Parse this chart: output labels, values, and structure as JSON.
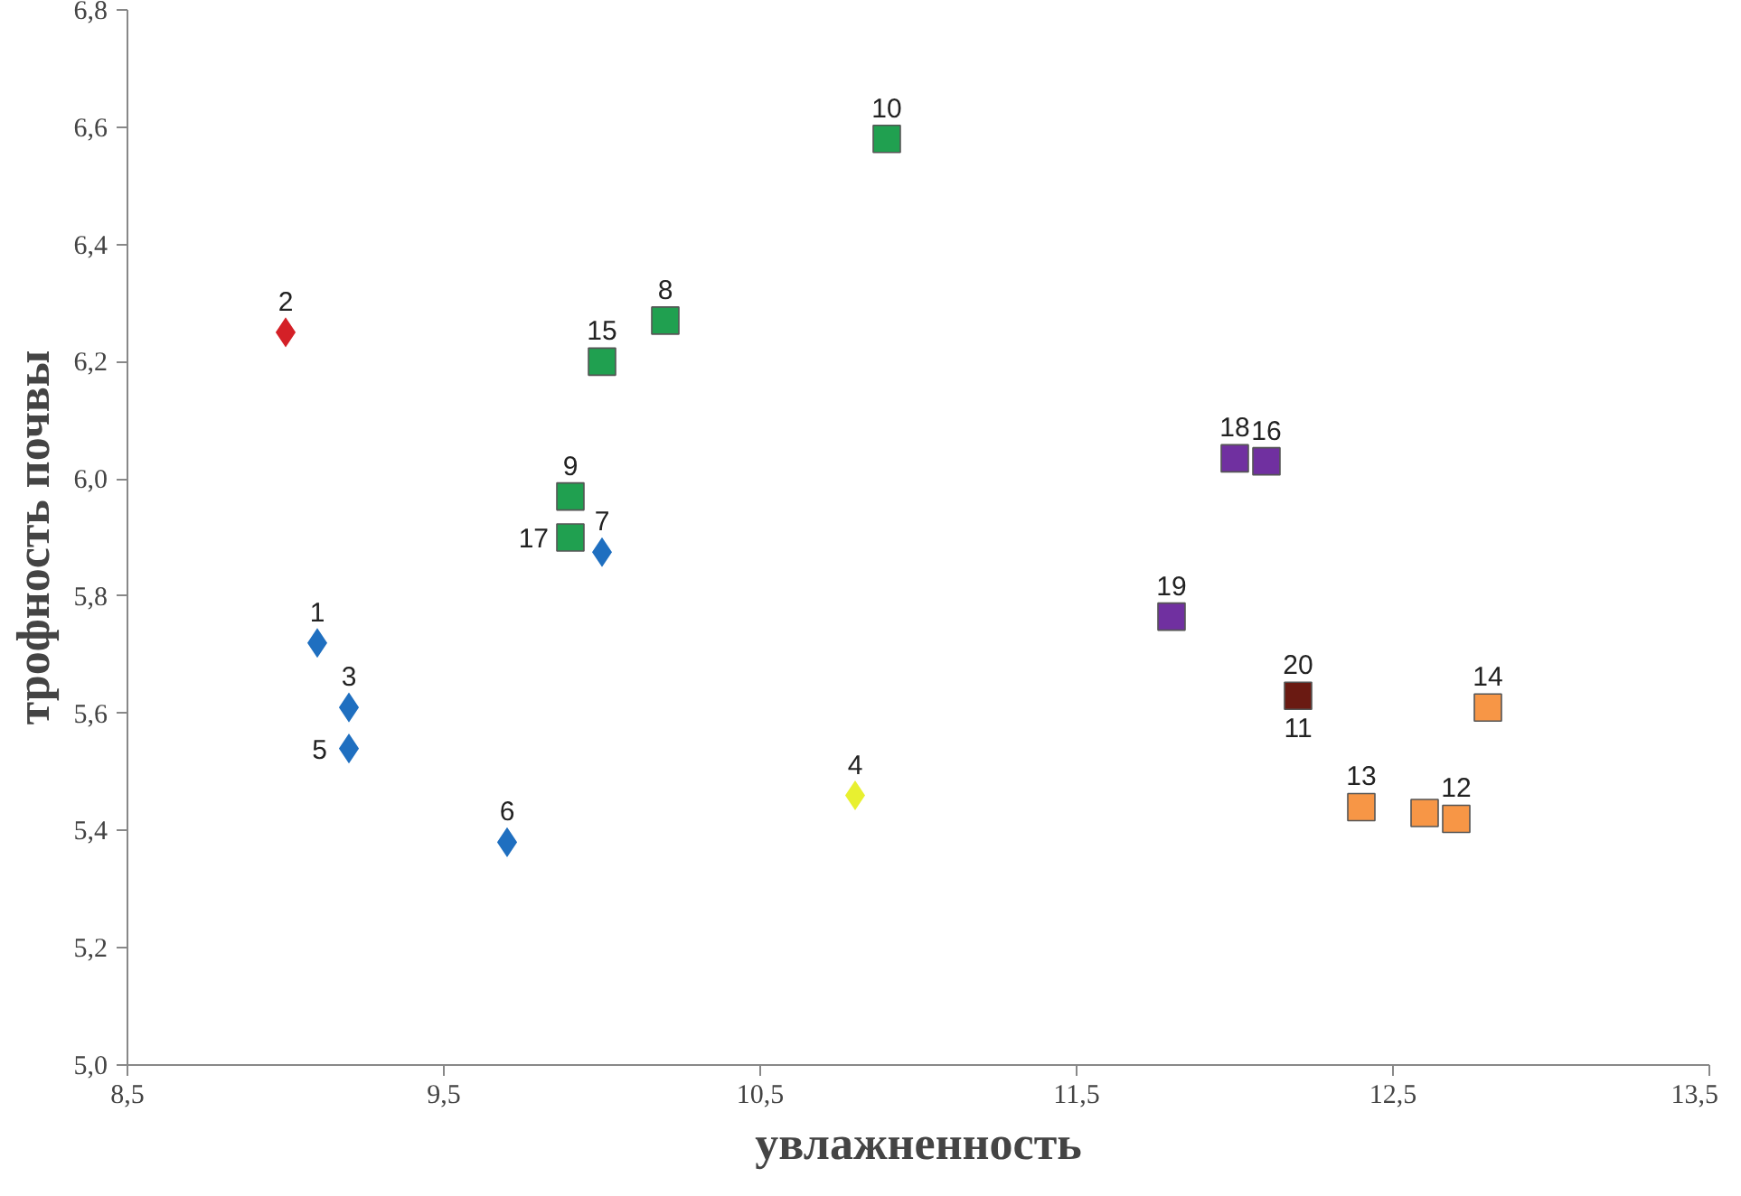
{
  "chart_data": {
    "type": "scatter",
    "xlabel": "увлажненность",
    "ylabel": "трофность почвы",
    "xlim": [
      8.5,
      13.5
    ],
    "xticks": [
      {
        "value": 8.5,
        "label": "8,5"
      },
      {
        "value": 9.5,
        "label": "9,5"
      },
      {
        "value": 10.5,
        "label": "10,5"
      },
      {
        "value": 11.5,
        "label": "11,5"
      },
      {
        "value": 12.5,
        "label": "12,5"
      },
      {
        "value": 13.5,
        "label": "13,5"
      }
    ],
    "ylim": [
      5.0,
      6.8
    ],
    "yticks": [
      {
        "value": 5.0,
        "label": "5,0"
      },
      {
        "value": 5.2,
        "label": "5,2"
      },
      {
        "value": 5.4,
        "label": "5,4"
      },
      {
        "value": 5.6,
        "label": "5,6"
      },
      {
        "value": 5.8,
        "label": "5,8"
      },
      {
        "value": 6.0,
        "label": "6,0"
      },
      {
        "value": 6.2,
        "label": "6,2"
      },
      {
        "value": 6.4,
        "label": "6,4"
      },
      {
        "value": 6.6,
        "label": "6,6"
      },
      {
        "value": 6.8,
        "label": "6,8"
      }
    ],
    "series": [
      {
        "color": "#1f6fc0",
        "marker": "diamond",
        "x": [
          9.1,
          9.2,
          9.2,
          9.7,
          10.0
        ],
        "values": [
          5.72,
          5.61,
          5.54,
          5.38,
          5.875
        ]
      },
      {
        "color": "#d42027",
        "marker": "diamond",
        "x": [
          9.0
        ],
        "values": [
          6.25
        ]
      },
      {
        "color": "#e8f030",
        "marker": "diamond",
        "x": [
          10.8
        ],
        "values": [
          5.46
        ]
      },
      {
        "color": "#20a050",
        "marker": "square",
        "x": [
          9.9,
          9.9,
          10.0,
          10.2,
          10.9
        ],
        "values": [
          5.97,
          5.9,
          6.2,
          6.27,
          6.58
        ]
      },
      {
        "color": "#7030a0",
        "marker": "square",
        "x": [
          11.8,
          12.0,
          12.1
        ],
        "values": [
          5.765,
          6.035,
          6.03
        ]
      },
      {
        "color": "#6a1a12",
        "marker": "square",
        "x": [
          12.2
        ],
        "values": [
          5.63
        ]
      },
      {
        "color": "#f79646",
        "marker": "square",
        "x": [
          12.4,
          12.6,
          12.7,
          12.8
        ],
        "values": [
          5.44,
          5.43,
          5.42,
          5.61
        ]
      }
    ],
    "annotations": [
      {
        "text": "1",
        "x": 9.1,
        "y": 5.72
      },
      {
        "text": "2",
        "x": 9.0,
        "y": 6.25
      },
      {
        "text": "3",
        "x": 9.2,
        "y": 5.61
      },
      {
        "text": "4",
        "x": 10.8,
        "y": 5.46
      },
      {
        "text": "5",
        "x": 9.2,
        "y": 5.54
      },
      {
        "text": "6",
        "x": 9.7,
        "y": 5.38
      },
      {
        "text": "7",
        "x": 10.0,
        "y": 5.875
      },
      {
        "text": "8",
        "x": 10.2,
        "y": 6.27
      },
      {
        "text": "9",
        "x": 9.9,
        "y": 5.97
      },
      {
        "text": "10",
        "x": 10.9,
        "y": 6.58
      },
      {
        "text": "20",
        "x": 12.2,
        "y": 5.63
      },
      {
        "text": "11",
        "x": 12.2,
        "y": 5.63
      },
      {
        "text": "13",
        "x": 12.4,
        "y": 5.44
      },
      {
        "text": "12",
        "x": 12.7,
        "y": 5.42
      },
      {
        "text": "14",
        "x": 12.8,
        "y": 5.61
      },
      {
        "text": "15",
        "x": 10.0,
        "y": 6.2
      },
      {
        "text": "16",
        "x": 12.1,
        "y": 6.03
      },
      {
        "text": "17",
        "x": 9.9,
        "y": 5.9
      },
      {
        "text": "18",
        "x": 12.0,
        "y": 6.035
      },
      {
        "text": "19",
        "x": 11.8,
        "y": 5.765
      }
    ]
  }
}
